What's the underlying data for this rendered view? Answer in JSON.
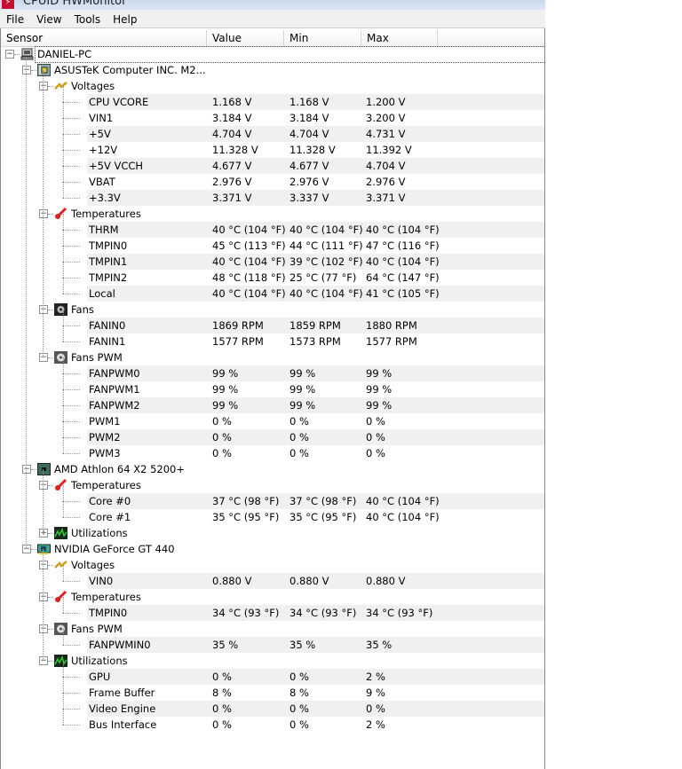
{
  "window": {
    "title": "CPUID HWMonitor"
  },
  "menu": [
    "File",
    "View",
    "Tools",
    "Help"
  ],
  "columns": [
    "Sensor",
    "Value",
    "Min",
    "Max"
  ],
  "colors": {
    "shade": "#f0f0f0",
    "titlebar": "#dbe7f4"
  },
  "tree": [
    {
      "level": 0,
      "icon": "computer-icon",
      "label": "DANIEL-PC",
      "expanded": true
    },
    {
      "level": 1,
      "icon": "motherboard-icon",
      "label": "ASUSTeK Computer INC. M2...",
      "expanded": true
    },
    {
      "level": 2,
      "icon": "voltage-icon",
      "label": "Voltages",
      "expanded": true
    },
    {
      "level": 3,
      "label": "CPU VCORE",
      "value": "1.168 V",
      "min": "1.168 V",
      "max": "1.200 V"
    },
    {
      "level": 3,
      "label": "VIN1",
      "value": "3.184 V",
      "min": "3.184 V",
      "max": "3.200 V"
    },
    {
      "level": 3,
      "label": "+5V",
      "value": "4.704 V",
      "min": "4.704 V",
      "max": "4.731 V"
    },
    {
      "level": 3,
      "label": "+12V",
      "value": "11.328 V",
      "min": "11.328 V",
      "max": "11.392 V"
    },
    {
      "level": 3,
      "label": "+5V VCCH",
      "value": "4.677 V",
      "min": "4.677 V",
      "max": "4.704 V"
    },
    {
      "level": 3,
      "label": "VBAT",
      "value": "2.976 V",
      "min": "2.976 V",
      "max": "2.976 V"
    },
    {
      "level": 3,
      "label": "+3.3V",
      "value": "3.371 V",
      "min": "3.337 V",
      "max": "3.371 V"
    },
    {
      "level": 2,
      "icon": "thermometer-icon",
      "label": "Temperatures",
      "expanded": true
    },
    {
      "level": 3,
      "label": "THRM",
      "value": "40 °C  (104 °F)",
      "min": "40 °C  (104 °F)",
      "max": "40 °C  (104 °F)"
    },
    {
      "level": 3,
      "label": "TMPIN0",
      "value": "45 °C  (113 °F)",
      "min": "44 °C  (111 °F)",
      "max": "47 °C  (116 °F)"
    },
    {
      "level": 3,
      "label": "TMPIN1",
      "value": "40 °C  (104 °F)",
      "min": "39 °C  (102 °F)",
      "max": "40 °C  (104 °F)"
    },
    {
      "level": 3,
      "label": "TMPIN2",
      "value": "48 °C  (118 °F)",
      "min": "25 °C  (77 °F)",
      "max": "64 °C  (147 °F)"
    },
    {
      "level": 3,
      "label": "Local",
      "value": "40 °C  (104 °F)",
      "min": "40 °C  (104 °F)",
      "max": "41 °C  (105 °F)"
    },
    {
      "level": 2,
      "icon": "fan-icon",
      "label": "Fans",
      "expanded": true
    },
    {
      "level": 3,
      "label": "FANIN0",
      "value": "1869 RPM",
      "min": "1859 RPM",
      "max": "1880 RPM"
    },
    {
      "level": 3,
      "label": "FANIN1",
      "value": "1577 RPM",
      "min": "1573 RPM",
      "max": "1577 RPM"
    },
    {
      "level": 2,
      "icon": "fan-pwm-icon",
      "label": "Fans PWM",
      "expanded": true
    },
    {
      "level": 3,
      "label": "FANPWM0",
      "value": "99 %",
      "min": "99 %",
      "max": "99 %"
    },
    {
      "level": 3,
      "label": "FANPWM1",
      "value": "99 %",
      "min": "99 %",
      "max": "99 %"
    },
    {
      "level": 3,
      "label": "FANPWM2",
      "value": "99 %",
      "min": "99 %",
      "max": "99 %"
    },
    {
      "level": 3,
      "label": "PWM1",
      "value": "0 %",
      "min": "0 %",
      "max": "0 %"
    },
    {
      "level": 3,
      "label": "PWM2",
      "value": "0 %",
      "min": "0 %",
      "max": "0 %"
    },
    {
      "level": 3,
      "label": "PWM3",
      "value": "0 %",
      "min": "0 %",
      "max": "0 %"
    },
    {
      "level": 1,
      "icon": "cpu-icon",
      "label": "AMD Athlon 64 X2 5200+",
      "expanded": true
    },
    {
      "level": 2,
      "icon": "thermometer-icon",
      "label": "Temperatures",
      "expanded": true
    },
    {
      "level": 3,
      "label": "Core #0",
      "value": "37 °C  (98 °F)",
      "min": "37 °C  (98 °F)",
      "max": "40 °C  (104 °F)"
    },
    {
      "level": 3,
      "label": "Core #1",
      "value": "35 °C  (95 °F)",
      "min": "35 °C  (95 °F)",
      "max": "40 °C  (104 °F)"
    },
    {
      "level": 2,
      "icon": "utilization-icon",
      "label": "Utilizations",
      "expanded": false
    },
    {
      "level": 1,
      "icon": "gpu-icon",
      "label": "NVIDIA GeForce GT 440",
      "expanded": true
    },
    {
      "level": 2,
      "icon": "voltage-icon",
      "label": "Voltages",
      "expanded": true
    },
    {
      "level": 3,
      "label": "VIN0",
      "value": "0.880 V",
      "min": "0.880 V",
      "max": "0.880 V"
    },
    {
      "level": 2,
      "icon": "thermometer-icon",
      "label": "Temperatures",
      "expanded": true
    },
    {
      "level": 3,
      "label": "TMPIN0",
      "value": "34 °C  (93 °F)",
      "min": "34 °C  (93 °F)",
      "max": "34 °C  (93 °F)"
    },
    {
      "level": 2,
      "icon": "fan-pwm-icon",
      "label": "Fans PWM",
      "expanded": true
    },
    {
      "level": 3,
      "label": "FANPWMIN0",
      "value": "35 %",
      "min": "35 %",
      "max": "35 %"
    },
    {
      "level": 2,
      "icon": "utilization-icon",
      "label": "Utilizations",
      "expanded": true
    },
    {
      "level": 3,
      "label": "GPU",
      "value": "0 %",
      "min": "0 %",
      "max": "2 %"
    },
    {
      "level": 3,
      "label": "Frame Buffer",
      "value": "8 %",
      "min": "8 %",
      "max": "9 %"
    },
    {
      "level": 3,
      "label": "Video Engine",
      "value": "0 %",
      "min": "0 %",
      "max": "0 %"
    },
    {
      "level": 3,
      "label": "Bus Interface",
      "value": "0 %",
      "min": "0 %",
      "max": "2 %"
    }
  ]
}
